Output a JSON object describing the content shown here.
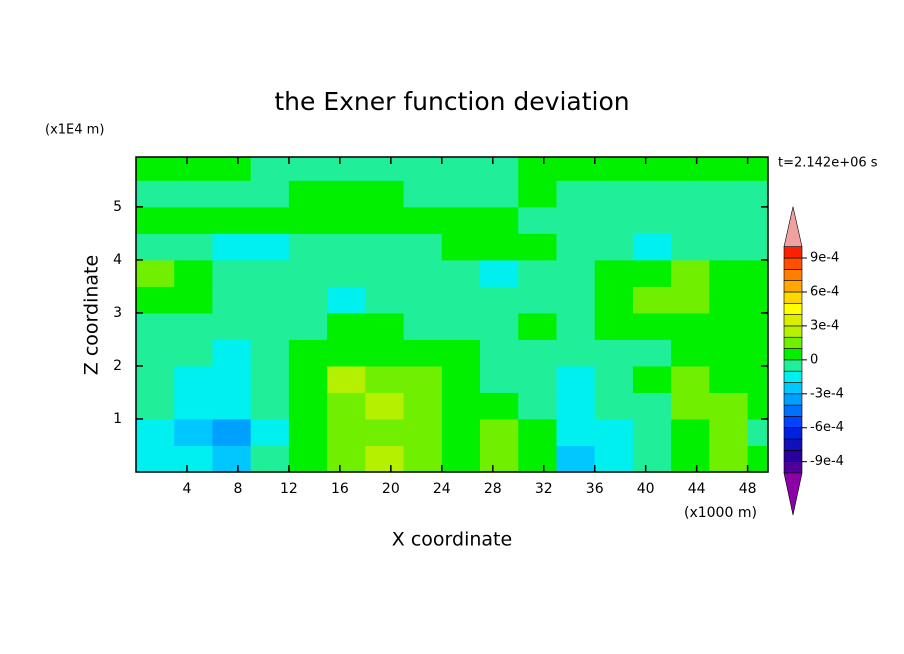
{
  "chart_data": {
    "type": "contour",
    "title": "the Exner function deviation",
    "xlabel": "X coordinate",
    "ylabel": "Z coordinate",
    "x_unit": "(x1000 m)",
    "y_unit": "(x1E4 m)",
    "annotation": "t=2.142e+06 s",
    "xlim": [
      0,
      49.6
    ],
    "ylim": [
      0,
      5.94
    ],
    "xticks": [
      4,
      8,
      12,
      16,
      20,
      24,
      28,
      32,
      36,
      40,
      44,
      48
    ],
    "yticks": [
      1,
      2,
      3,
      4,
      5
    ],
    "x": [
      1.5,
      4.5,
      7.5,
      10.5,
      13.5,
      16.5,
      19.5,
      22.5,
      25.5,
      28.5,
      31.5,
      34.5,
      37.5,
      40.5,
      43.5,
      46.5,
      49.5
    ],
    "y": [
      0.25,
      0.75,
      1.25,
      1.75,
      2.25,
      2.75,
      3.25,
      3.75,
      4.25,
      4.75,
      5.25,
      5.75
    ],
    "z": [
      [
        -0.00015,
        -0.00015,
        -0.00025,
        -5e-05,
        5e-05,
        0.00015,
        0.00025,
        0.00015,
        5e-05,
        0.00015,
        5e-05,
        -0.00025,
        -0.00015,
        -5e-05,
        5e-05,
        0.00015,
        5e-05
      ],
      [
        -0.00015,
        -0.00025,
        -0.00035,
        -0.00015,
        5e-05,
        0.00015,
        0.00015,
        0.00015,
        5e-05,
        0.00015,
        5e-05,
        -0.00015,
        -0.00015,
        -5e-05,
        5e-05,
        0.00015,
        -5e-05
      ],
      [
        -5e-05,
        -0.00015,
        -0.00015,
        -5e-05,
        5e-05,
        0.00015,
        0.00025,
        0.00015,
        5e-05,
        5e-05,
        -5e-05,
        -0.00015,
        -5e-05,
        -5e-05,
        0.00015,
        0.00015,
        5e-05
      ],
      [
        -5e-05,
        -0.00015,
        -0.00015,
        -5e-05,
        5e-05,
        0.00025,
        0.00015,
        0.00015,
        5e-05,
        -5e-05,
        -5e-05,
        -0.00015,
        -5e-05,
        5e-05,
        0.00015,
        5e-05,
        5e-05
      ],
      [
        -5e-05,
        -5e-05,
        -0.00015,
        -5e-05,
        5e-05,
        5e-05,
        5e-05,
        5e-05,
        5e-05,
        -5e-05,
        -5e-05,
        -5e-05,
        -5e-05,
        -5e-05,
        5e-05,
        5e-05,
        5e-05
      ],
      [
        -5e-05,
        -5e-05,
        -5e-05,
        -5e-05,
        -5e-05,
        5e-05,
        5e-05,
        -5e-05,
        -5e-05,
        -5e-05,
        5e-05,
        -5e-05,
        5e-05,
        5e-05,
        5e-05,
        5e-05,
        5e-05
      ],
      [
        5e-05,
        5e-05,
        -5e-05,
        -5e-05,
        -5e-05,
        -0.00015,
        -5e-05,
        -5e-05,
        -5e-05,
        -5e-05,
        -5e-05,
        -5e-05,
        5e-05,
        0.00015,
        0.00015,
        5e-05,
        5e-05
      ],
      [
        0.00015,
        5e-05,
        -5e-05,
        -5e-05,
        -5e-05,
        -5e-05,
        -5e-05,
        -5e-05,
        -5e-05,
        -0.00015,
        -5e-05,
        -5e-05,
        5e-05,
        5e-05,
        0.00015,
        5e-05,
        5e-05
      ],
      [
        -5e-05,
        -5e-05,
        -0.00015,
        -0.00015,
        -5e-05,
        -5e-05,
        -5e-05,
        -5e-05,
        5e-05,
        5e-05,
        5e-05,
        -5e-05,
        -5e-05,
        -0.00015,
        -5e-05,
        -5e-05,
        -5e-05
      ],
      [
        5e-05,
        5e-05,
        5e-05,
        5e-05,
        5e-05,
        5e-05,
        5e-05,
        5e-05,
        5e-05,
        5e-05,
        -5e-05,
        -5e-05,
        -5e-05,
        -5e-05,
        -5e-05,
        -5e-05,
        -5e-05
      ],
      [
        -5e-05,
        -5e-05,
        -5e-05,
        -5e-05,
        5e-05,
        5e-05,
        5e-05,
        -5e-05,
        -5e-05,
        -5e-05,
        5e-05,
        -5e-05,
        -5e-05,
        -5e-05,
        -5e-05,
        -5e-05,
        -5e-05
      ],
      [
        5e-05,
        5e-05,
        5e-05,
        -5e-05,
        -5e-05,
        -5e-05,
        -5e-05,
        -5e-05,
        -5e-05,
        -5e-05,
        5e-05,
        5e-05,
        5e-05,
        5e-05,
        5e-05,
        5e-05,
        5e-05
      ]
    ],
    "levels": [
      -0.001,
      -0.0009,
      -0.0008,
      -0.0007,
      -0.0006,
      -0.0005,
      -0.0004,
      -0.0003,
      -0.0002,
      -0.0001,
      0,
      0.0001,
      0.0002,
      0.0003,
      0.0004,
      0.0005,
      0.0006,
      0.0007,
      0.0008,
      0.0009,
      0.001
    ],
    "colors": [
      "#500098",
      "#2a00a0",
      "#1010b8",
      "#0020e0",
      "#0044ff",
      "#0070ff",
      "#00a0ff",
      "#00c8ff",
      "#00f0f0",
      "#20ee98",
      "#00f000",
      "#70f000",
      "#b4f000",
      "#d8f000",
      "#ffff00",
      "#ffd800",
      "#ffa800",
      "#ff8000",
      "#ff5000",
      "#ff2000"
    ],
    "under_color": "#8c00a8",
    "over_color": "#f0a0a0",
    "colorbar_ticks": [
      {
        "value": 0.0009,
        "label": "9e-4"
      },
      {
        "value": 0.0006,
        "label": "6e-4"
      },
      {
        "value": 0.0003,
        "label": "3e-4"
      },
      0,
      {
        "value": -0.0003,
        "label": "-3e-4"
      },
      {
        "value": -0.0006,
        "label": "-6e-4"
      },
      {
        "value": -0.0009,
        "label": "-9e-4"
      }
    ]
  }
}
